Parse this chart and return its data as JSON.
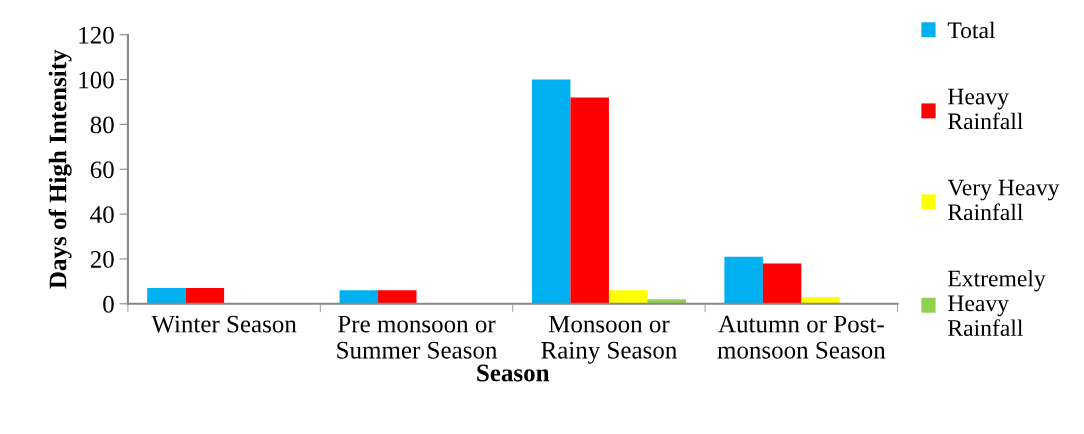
{
  "chart_data": {
    "type": "bar",
    "xlabel": "Season",
    "ylabel": "Days of High Intensity",
    "categories": [
      "Winter Season",
      "Pre monsoon or\nSummer Season",
      "Monsoon or\nRainy Season",
      "Autumn or Post-\nmonsoon Season"
    ],
    "series": [
      {
        "name": "Total",
        "color": "#00b0f0",
        "values": [
          7,
          6,
          100,
          21
        ]
      },
      {
        "name": "Heavy\nRainfall",
        "color": "#ff0000",
        "values": [
          7,
          6,
          92,
          18
        ]
      },
      {
        "name": "Very Heavy\nRainfall",
        "color": "#ffff00",
        "values": [
          0,
          0,
          6,
          3
        ]
      },
      {
        "name": "Extremely\nHeavy\nRainfall",
        "color": "#92d050",
        "values": [
          0,
          0,
          2,
          0
        ]
      }
    ],
    "ylim": [
      0,
      120
    ],
    "yticks": [
      0,
      20,
      40,
      60,
      80,
      100,
      120
    ],
    "grid": false,
    "legend": "right"
  }
}
